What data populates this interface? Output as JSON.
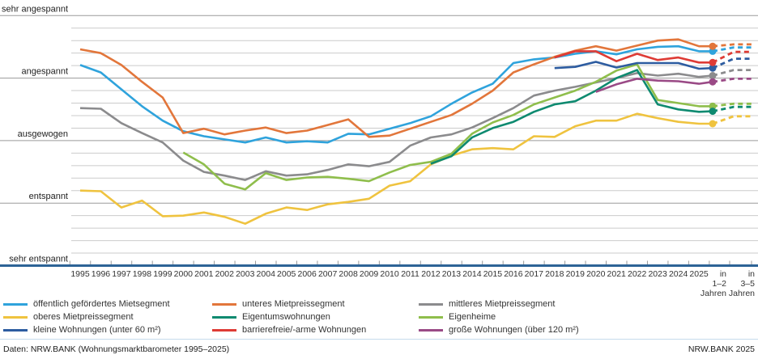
{
  "chart_data": {
    "type": "line",
    "title": "Wohnungsmarktbarometer",
    "x_labels": [
      "1995",
      "1996",
      "1997",
      "1998",
      "1999",
      "2000",
      "2001",
      "2002",
      "2003",
      "2004",
      "2005",
      "2006",
      "2007",
      "2008",
      "2009",
      "2010",
      "2011",
      "2012",
      "2013",
      "2014",
      "2015",
      "2016",
      "2017",
      "2018",
      "2019",
      "2020",
      "2021",
      "2022",
      "2023",
      "2024",
      "2025"
    ],
    "forecast_columns": [
      {
        "id": "forecast-1-2",
        "lines": [
          "in",
          "1–2",
          "Jahren"
        ]
      },
      {
        "id": "forecast-3-5",
        "lines": [
          "in",
          "3–5",
          "Jahren"
        ]
      }
    ],
    "y_axis": {
      "range": [
        0,
        4
      ],
      "labels": [
        {
          "text": "sehr angespannt",
          "value": 4
        },
        {
          "text": "angespannt",
          "value": 3
        },
        {
          "text": "ausgewogen",
          "value": 2
        },
        {
          "text": "entspannt",
          "value": 1
        },
        {
          "text": "sehr entspannt",
          "value": 0
        }
      ]
    },
    "grid": true,
    "legend_position": "bottom",
    "series": [
      {
        "id": "oeffentlich",
        "label": "öffentlich gefördertes Mietsegment",
        "color": "#2FA3DC",
        "start_year": 1995,
        "values": [
          3.21,
          3.09,
          2.82,
          2.55,
          2.32,
          2.15,
          2.07,
          2.02,
          1.97,
          2.05,
          1.97,
          1.99,
          1.97,
          2.11,
          2.1,
          2.19,
          2.28,
          2.39,
          2.59,
          2.77,
          2.91,
          3.24,
          3.3,
          3.33,
          3.39,
          3.43,
          3.38,
          3.46,
          3.5,
          3.51,
          3.43
        ],
        "forecast_1_2": 3.43,
        "forecast_3_5": 3.49
      },
      {
        "id": "unteres",
        "label": "unteres Mietpreissegment",
        "color": "#E2763B",
        "start_year": 1995,
        "values": [
          3.46,
          3.4,
          3.21,
          2.94,
          2.69,
          2.12,
          2.19,
          2.1,
          2.16,
          2.21,
          2.12,
          2.16,
          2.25,
          2.34,
          2.06,
          2.08,
          2.19,
          2.3,
          2.41,
          2.59,
          2.8,
          3.09,
          3.22,
          3.34,
          3.44,
          3.51,
          3.44,
          3.52,
          3.6,
          3.62,
          3.51
        ],
        "forecast_1_2": 3.51,
        "forecast_3_5": 3.54
      },
      {
        "id": "mittleres",
        "label": "mittleres Mietpreissegment",
        "color": "#8B8B8D",
        "start_year": 1995,
        "values": [
          2.52,
          2.51,
          2.28,
          2.12,
          1.97,
          1.68,
          1.5,
          1.44,
          1.37,
          1.51,
          1.44,
          1.46,
          1.53,
          1.62,
          1.59,
          1.66,
          1.92,
          2.05,
          2.1,
          2.21,
          2.36,
          2.52,
          2.72,
          2.8,
          2.86,
          2.93,
          3.0,
          3.08,
          3.04,
          3.07,
          3.02
        ],
        "forecast_1_2": 3.04,
        "forecast_3_5": 3.13
      },
      {
        "id": "oberes",
        "label": "oberes Mietpreissegment",
        "color": "#EFC33F",
        "start_year": 1995,
        "values": [
          1.2,
          1.19,
          0.93,
          1.04,
          0.79,
          0.8,
          0.85,
          0.78,
          0.67,
          0.83,
          0.93,
          0.89,
          0.98,
          1.02,
          1.07,
          1.28,
          1.35,
          1.62,
          1.76,
          1.86,
          1.88,
          1.86,
          2.07,
          2.06,
          2.23,
          2.32,
          2.32,
          2.43,
          2.36,
          2.3,
          2.27
        ],
        "forecast_1_2": 2.27,
        "forecast_3_5": 2.39
      },
      {
        "id": "eigentumswohnungen",
        "label": "Eigentumswohnungen",
        "color": "#0E8A70",
        "start_year": 2012,
        "values": [
          1.63,
          1.75,
          2.05,
          2.2,
          2.3,
          2.46,
          2.58,
          2.63,
          2.8,
          3.0,
          3.13,
          2.58,
          2.5,
          2.46
        ],
        "forecast_1_2": 2.47,
        "forecast_3_5": 2.54
      },
      {
        "id": "eigenheime",
        "label": "Eigenheime",
        "color": "#8FBE4C",
        "start_year": 2000,
        "values": [
          1.81,
          1.62,
          1.31,
          1.22,
          1.48,
          1.37,
          1.41,
          1.42,
          1.39,
          1.35,
          1.49,
          1.61,
          1.66,
          1.79,
          2.11,
          2.29,
          2.41,
          2.58,
          2.69,
          2.8,
          2.94,
          3.12,
          3.22,
          2.65,
          2.6,
          2.55
        ],
        "forecast_1_2": 2.55,
        "forecast_3_5": 2.59
      },
      {
        "id": "kleine",
        "label": "kleine Wohnungen (unter 60 m²)",
        "color": "#2D5CA0",
        "start_year": 2018,
        "values": [
          3.16,
          3.18,
          3.26,
          3.17,
          3.24,
          3.24,
          3.24,
          3.15
        ],
        "forecast_1_2": 3.16,
        "forecast_3_5": 3.31
      },
      {
        "id": "barrierefreie",
        "label": "barrierefreie/-arme Wohnungen",
        "color": "#DE3B35",
        "start_year": 2018,
        "values": [
          3.33,
          3.43,
          3.43,
          3.27,
          3.39,
          3.29,
          3.33,
          3.25
        ],
        "forecast_1_2": 3.25,
        "forecast_3_5": 3.42
      },
      {
        "id": "grosse",
        "label": "große Wohnungen (über 120 m²)",
        "color": "#9A4A86",
        "start_year": 2020,
        "values": [
          2.78,
          2.9,
          2.99,
          2.96,
          2.95,
          2.91
        ],
        "forecast_1_2": 2.94,
        "forecast_3_5": 2.99
      }
    ]
  },
  "colors": {
    "axis": "#2D6396",
    "grid_major": "#9A9A9A",
    "grid_minor": "#CBCBCB",
    "tick": "#9A9A9A",
    "axis_text": "#333333",
    "y_label_text": "#222222",
    "footer_rule": "#C5DCEC"
  },
  "footer": {
    "source": "Daten: NRW.BANK (Wohnungsmarktbarometer 1995–2025)",
    "publisher": "NRW.BANK 2025"
  }
}
